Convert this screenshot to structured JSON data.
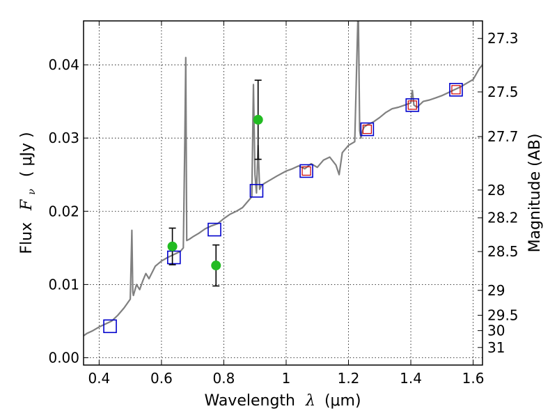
{
  "chart_data": {
    "type": "line",
    "xlabel_text": "Wavelength",
    "xlabel_symbol": "λ",
    "xlabel_unit": "(μm)",
    "ylabel_text": "Flux",
    "ylabel_symbol": "F",
    "ylabel_sub": "ν",
    "ylabel_unit": "( μJy )",
    "y2label": "Magnitude (AB)",
    "xlim": [
      0.35,
      1.63
    ],
    "ylim": [
      -0.001,
      0.046
    ],
    "grid": true,
    "x_ticks": [
      0.4,
      0.6,
      0.8,
      1.0,
      1.2,
      1.4,
      1.6
    ],
    "x_tick_labels": [
      "0.4",
      "0.6",
      "0.8",
      "1",
      "1.2",
      "1.4",
      "1.6"
    ],
    "y_ticks": [
      0.0,
      0.01,
      0.02,
      0.03,
      0.04
    ],
    "y_tick_labels": [
      "0.00",
      "0.01",
      "0.02",
      "0.03",
      "0.04"
    ],
    "y2_ticks": [
      {
        "label": "27.3",
        "flux": 0.0436
      },
      {
        "label": "27.5",
        "flux": 0.0363
      },
      {
        "label": "27.7",
        "flux": 0.0302
      },
      {
        "label": "28",
        "flux": 0.0229
      },
      {
        "label": "28.2",
        "flux": 0.0191
      },
      {
        "label": "28.5",
        "flux": 0.0145
      },
      {
        "label": "29",
        "flux": 0.0092
      },
      {
        "label": "29.5",
        "flux": 0.0058
      },
      {
        "label": "30",
        "flux": 0.0037
      },
      {
        "label": "31",
        "flux": 0.0014
      }
    ],
    "colors": {
      "spectrum": "#808080",
      "model_points": "#0000cc",
      "model_red": "#cc0000",
      "observed": "#22bb22",
      "errorbar": "#000000"
    },
    "series": [
      {
        "kind": "spectrum",
        "x": [
          0.35,
          0.36,
          0.38,
          0.4,
          0.42,
          0.44,
          0.46,
          0.48,
          0.5,
          0.505,
          0.508,
          0.51,
          0.52,
          0.53,
          0.54,
          0.55,
          0.56,
          0.58,
          0.6,
          0.62,
          0.64,
          0.66,
          0.67,
          0.675,
          0.678,
          0.681,
          0.69,
          0.7,
          0.72,
          0.74,
          0.76,
          0.78,
          0.8,
          0.82,
          0.84,
          0.86,
          0.88,
          0.89,
          0.895,
          0.9,
          0.905,
          0.91,
          0.915,
          0.92,
          0.93,
          0.95,
          0.97,
          1.0,
          1.02,
          1.04,
          1.06,
          1.08,
          1.1,
          1.12,
          1.14,
          1.16,
          1.17,
          1.18,
          1.2,
          1.22,
          1.23,
          1.232,
          1.236,
          1.24,
          1.245,
          1.25,
          1.26,
          1.28,
          1.3,
          1.32,
          1.34,
          1.36,
          1.38,
          1.4,
          1.405,
          1.41,
          1.42,
          1.44,
          1.46,
          1.48,
          1.5,
          1.52,
          1.54,
          1.56,
          1.58,
          1.6,
          1.62,
          1.63
        ],
        "y": [
          0.003,
          0.0033,
          0.0037,
          0.0042,
          0.0046,
          0.005,
          0.0058,
          0.0068,
          0.008,
          0.0174,
          0.009,
          0.0085,
          0.01,
          0.0093,
          0.0105,
          0.0115,
          0.0108,
          0.0125,
          0.0132,
          0.0137,
          0.0141,
          0.0145,
          0.015,
          0.03,
          0.041,
          0.016,
          0.0162,
          0.0165,
          0.017,
          0.0176,
          0.018,
          0.0183,
          0.019,
          0.0196,
          0.02,
          0.0205,
          0.0215,
          0.022,
          0.0373,
          0.025,
          0.0225,
          0.029,
          0.023,
          0.0235,
          0.0238,
          0.0243,
          0.0248,
          0.0255,
          0.0258,
          0.0262,
          0.0258,
          0.0265,
          0.026,
          0.027,
          0.0274,
          0.0263,
          0.025,
          0.028,
          0.029,
          0.0295,
          0.046,
          0.046,
          0.031,
          0.03,
          0.031,
          0.0315,
          0.0318,
          0.0322,
          0.0328,
          0.0335,
          0.034,
          0.0342,
          0.0345,
          0.0348,
          0.0365,
          0.0345,
          0.0342,
          0.035,
          0.0352,
          0.0355,
          0.0358,
          0.0362,
          0.0366,
          0.037,
          0.0375,
          0.038,
          0.0395,
          0.04
        ]
      },
      {
        "kind": "model_points",
        "x": [
          0.435,
          0.64,
          0.77,
          0.905,
          1.065,
          1.26,
          1.405,
          1.545
        ],
        "y": [
          0.0043,
          0.0137,
          0.0175,
          0.0228,
          0.0255,
          0.0312,
          0.0345,
          0.0366
        ]
      },
      {
        "kind": "model_red",
        "x": [
          1.065,
          1.26,
          1.405,
          1.545
        ],
        "y": [
          0.0255,
          0.0312,
          0.0345,
          0.0366
        ]
      },
      {
        "kind": "observed",
        "x": [
          0.635,
          0.775,
          0.91
        ],
        "y": [
          0.0152,
          0.0126,
          0.0325
        ],
        "err": [
          0.0025,
          0.0028,
          0.0054
        ]
      }
    ]
  }
}
